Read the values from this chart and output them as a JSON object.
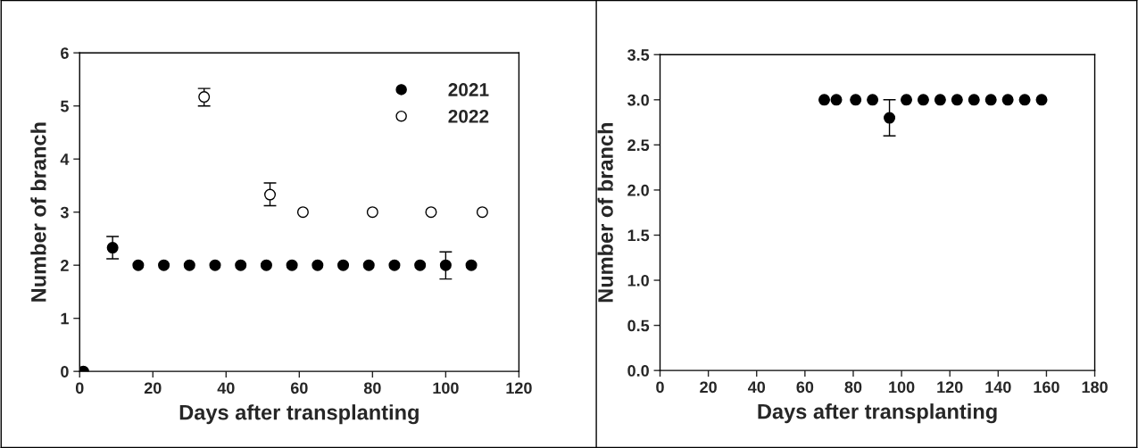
{
  "chart_data": [
    {
      "type": "scatter",
      "xlabel": "Days after transplanting",
      "ylabel": "Number of branch",
      "xlim": [
        0,
        120
      ],
      "xticks": [
        0,
        20,
        40,
        60,
        80,
        100,
        120
      ],
      "ylim": [
        0,
        6
      ],
      "yticks": [
        0,
        1,
        2,
        3,
        4,
        5,
        6
      ],
      "legend": "top right",
      "grid": false,
      "marker": "circle",
      "series": [
        {
          "name": "2021",
          "color": "#000000",
          "x": [
            1,
            9,
            16,
            23,
            30,
            37,
            44,
            51,
            58,
            65,
            72,
            79,
            86,
            93,
            100,
            107
          ],
          "values": [
            0,
            2.33,
            2,
            2,
            2,
            2,
            2,
            2,
            2,
            2,
            2,
            2,
            2,
            2,
            2,
            2
          ],
          "errors": [
            null,
            0.21,
            null,
            null,
            null,
            null,
            null,
            null,
            null,
            null,
            null,
            null,
            null,
            null,
            [
              1.74,
              2.25
            ],
            null
          ]
        },
        {
          "name": "2022",
          "color": "#ffffff",
          "x": [
            34,
            52,
            61,
            80,
            96,
            110
          ],
          "values": [
            5.17,
            3.33,
            3,
            3,
            3,
            3
          ],
          "errors": [
            [
              5.0,
              5.33
            ],
            [
              3.12,
              3.55
            ],
            null,
            null,
            null,
            null
          ]
        }
      ]
    },
    {
      "type": "scatter",
      "xlabel": "Days after transplanting",
      "ylabel": "Number of branch",
      "xlim": [
        0,
        180
      ],
      "xticks": [
        0,
        20,
        40,
        60,
        80,
        100,
        120,
        140,
        160,
        180
      ],
      "ylim": [
        0,
        3.5
      ],
      "yticks": [
        {
          "value": 0,
          "label": "0.0"
        },
        {
          "value": 0.5,
          "label": "0.5"
        },
        {
          "value": 1,
          "label": "1.0"
        },
        {
          "value": 1.5,
          "label": "1.5"
        },
        {
          "value": 2,
          "label": "2.0"
        },
        {
          "value": 2.5,
          "label": "2.5"
        },
        {
          "value": 3,
          "label": "3.0"
        },
        {
          "value": 3.5,
          "label": "3.5"
        }
      ],
      "legend": false,
      "grid": false,
      "marker": "circle",
      "series": [
        {
          "color": "#000000",
          "x": [
            68,
            73,
            81,
            88,
            95,
            102,
            109,
            116,
            123,
            130,
            137,
            144,
            151,
            158
          ],
          "values": [
            3,
            3,
            3,
            3,
            2.8,
            3,
            3,
            3,
            3,
            3,
            3,
            3,
            3,
            3
          ],
          "errors": [
            null,
            null,
            null,
            null,
            0.2,
            null,
            null,
            null,
            null,
            null,
            null,
            null,
            null,
            null
          ]
        }
      ]
    }
  ]
}
